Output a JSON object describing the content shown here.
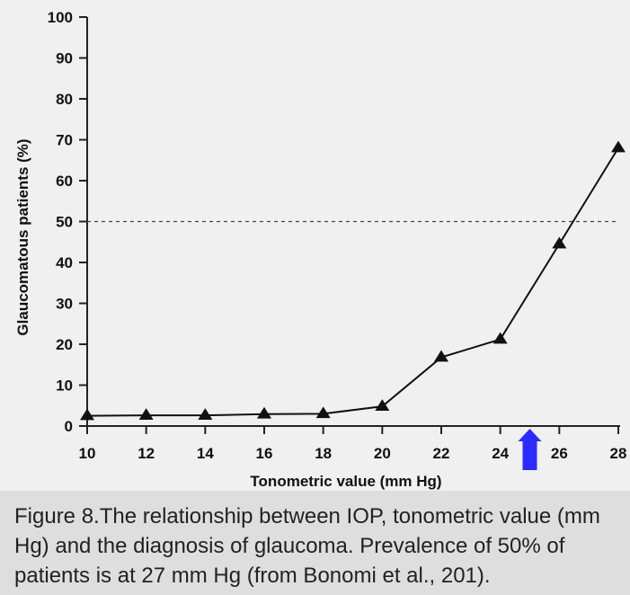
{
  "chart_data": {
    "type": "line",
    "xlabel": "Tonometric value (mm Hg)",
    "ylabel": "Glaucomatous patients (%)",
    "x": [
      10,
      12,
      14,
      16,
      18,
      20,
      22,
      24,
      26,
      28
    ],
    "series": [
      {
        "values": [
          2.5,
          2.6,
          2.6,
          2.9,
          3.0,
          4.8,
          16.8,
          21.2,
          44.5,
          68.0
        ]
      }
    ],
    "xticks": [
      "10",
      "12",
      "14",
      "16",
      "18",
      "20",
      "22",
      "24",
      "26",
      "28"
    ],
    "yticks": [
      "0",
      "10",
      "20",
      "30",
      "40",
      "50",
      "60",
      "70",
      "80",
      "90",
      "100"
    ],
    "xlim": [
      10,
      28
    ],
    "ylim": [
      0,
      100
    ],
    "grid": false,
    "marker": "triangle",
    "reference_line": {
      "y": 50,
      "style": "dashed"
    },
    "arrow_marker": {
      "x": 25,
      "color": "#2b2bff"
    }
  },
  "caption": "Figure 8.The relationship between IOP, tonometric value (mm Hg) and the diagnosis of glaucoma.  Prevalence of 50% of patients is at 27 mm Hg (from Bonomi et al., 201)."
}
